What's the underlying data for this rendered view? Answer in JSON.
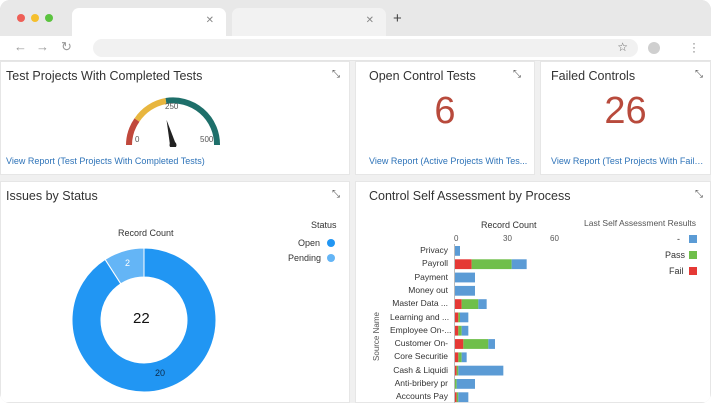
{
  "browser": {
    "tabs": [
      {
        "label": ""
      },
      {
        "label": ""
      }
    ],
    "new_tab_icon": "plus-icon",
    "window_controls": [
      "#ee5f57",
      "#f5bf2d",
      "#5bc33f"
    ]
  },
  "widgets": {
    "completed_tests": {
      "title": "Test Projects With Completed Tests",
      "gauge": {
        "min_label": "0",
        "mid_label": "250",
        "max_label": "500",
        "value_fraction": 0.42
      },
      "link": "View Report (Test Projects With Completed Tests)"
    },
    "open_tests": {
      "title": "Open Control Tests",
      "value": "6",
      "link": "View Report (Active Projects With Tes..."
    },
    "failed_controls": {
      "title": "Failed Controls",
      "value": "26",
      "link": "View Report (Test Projects With Faile..."
    },
    "issues": {
      "title": "Issues by Status",
      "record_label": "Record Count",
      "total": "22",
      "legend_title": "Status",
      "segments": [
        {
          "label": "Open",
          "value": "20",
          "color": "#2196f3"
        },
        {
          "label": "Pending",
          "value": "2",
          "color": "#64b5f6"
        }
      ]
    },
    "csa": {
      "title": "Control Self Assessment by Process",
      "x_title": "Record Count",
      "y_title": "Source Name",
      "legend_title": "Last Self  Assessment Results",
      "legend": [
        {
          "label": "-",
          "color": "#5b9bd5"
        },
        {
          "label": "Pass",
          "color": "#6fbf4a"
        },
        {
          "label": "Fail",
          "color": "#e53935"
        }
      ]
    }
  },
  "chart_data": [
    {
      "type": "pie",
      "title": "Record Count",
      "categories": [
        "Open",
        "Pending"
      ],
      "values": [
        20,
        2
      ]
    },
    {
      "type": "bar",
      "title": "Record Count",
      "ylabel": "Source Name",
      "xlim": [
        0,
        60
      ],
      "xticks": [
        "0",
        "30",
        "60"
      ],
      "categories": [
        "Privacy",
        "Payroll",
        "Payment",
        "Money out",
        "Master Data ...",
        "Learning and ...",
        "Employee On-...",
        "Customer On-",
        "Core Securitie",
        "Cash & Liquidi",
        "Anti-bribery pr",
        "Accounts Pay"
      ],
      "series": [
        {
          "name": "Fail",
          "values": [
            0,
            10,
            0,
            0,
            4,
            2,
            2,
            5,
            2,
            1,
            0,
            1
          ]
        },
        {
          "name": "Pass",
          "values": [
            0,
            24,
            0,
            0,
            10,
            1,
            2,
            15,
            2,
            1,
            1,
            1
          ]
        },
        {
          "name": "-",
          "values": [
            3,
            9,
            12,
            12,
            5,
            5,
            4,
            4,
            3,
            27,
            11,
            6
          ]
        }
      ]
    }
  ]
}
